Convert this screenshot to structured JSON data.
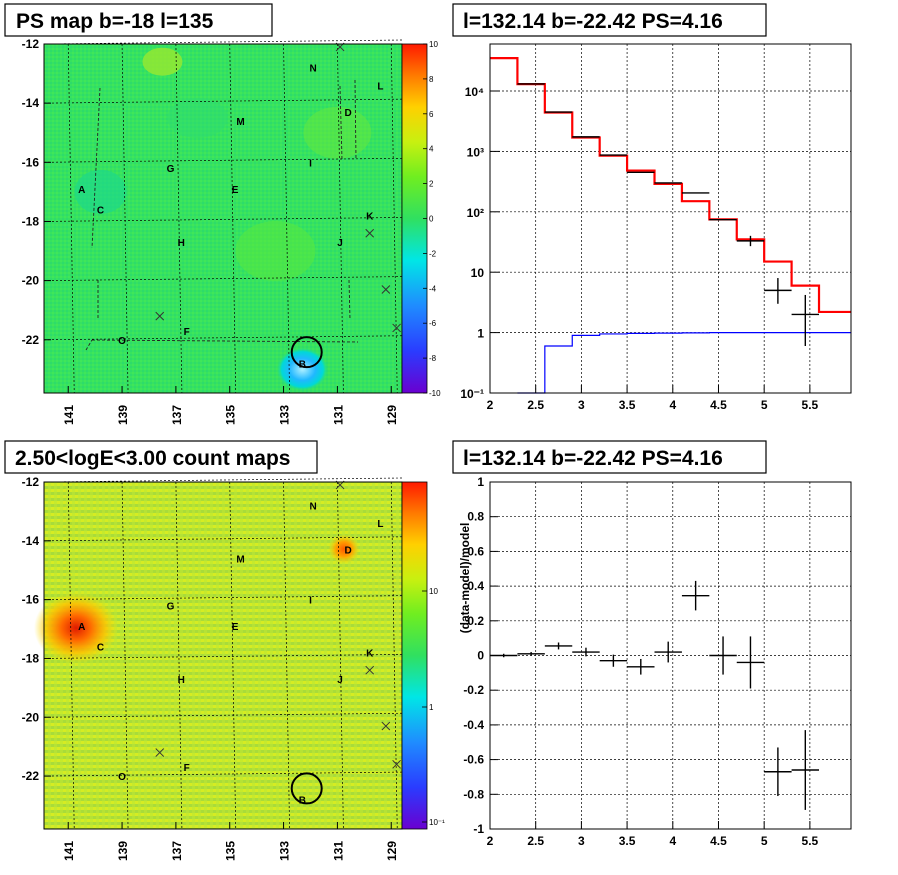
{
  "panels": {
    "ps_map": {
      "title": "PS map b=-18 l=135"
    },
    "count_map": {
      "title": "2.50<logE<3.00 count maps"
    },
    "spectrum": {
      "title": "l=132.14 b=-22.42 PS=4.16"
    },
    "residual": {
      "title": "l=132.14 b=-22.42 PS=4.16"
    }
  },
  "chart_data": [
    {
      "type": "heatmap",
      "title": "PS map b=-18 l=135",
      "xaxis": {
        "range": [
          141.9,
          128.6
        ],
        "ticks": [
          "141",
          "139",
          "137",
          "135",
          "133",
          "131",
          "129"
        ]
      },
      "yaxis": {
        "range": [
          -23.8,
          -12.0
        ],
        "ticks": [
          "-12",
          "-14",
          "-16",
          "-18",
          "-20",
          "-22"
        ]
      },
      "colorbar": {
        "range": [
          -10,
          10
        ],
        "ticks": [
          "10",
          "8",
          "6",
          "4",
          "2",
          "0",
          "-2",
          "-4",
          "-6",
          "-8",
          "-10"
        ]
      },
      "sources": [
        {
          "label": "N",
          "l": 131.9,
          "b": -12.8
        },
        {
          "label": "L",
          "l": 129.4,
          "b": -13.4
        },
        {
          "label": "M",
          "l": 134.6,
          "b": -14.6
        },
        {
          "label": "D",
          "l": 130.6,
          "b": -14.3
        },
        {
          "label": "G",
          "l": 137.2,
          "b": -16.2
        },
        {
          "label": "I",
          "l": 132.0,
          "b": -16.0
        },
        {
          "label": "A",
          "l": 140.5,
          "b": -16.9
        },
        {
          "label": "E",
          "l": 134.8,
          "b": -16.9
        },
        {
          "label": "C",
          "l": 139.8,
          "b": -17.6
        },
        {
          "label": "K",
          "l": 129.8,
          "b": -17.8
        },
        {
          "label": "H",
          "l": 136.8,
          "b": -18.7
        },
        {
          "label": "J",
          "l": 130.9,
          "b": -18.7
        },
        {
          "label": "F",
          "l": 136.6,
          "b": -21.7
        },
        {
          "label": "O",
          "l": 139.0,
          "b": -22.0
        },
        {
          "label": "B",
          "l": 132.3,
          "b": -22.8
        }
      ],
      "crosses": [
        {
          "l": 130.9,
          "b": -12.1
        },
        {
          "l": 129.8,
          "b": -18.4
        },
        {
          "l": 129.2,
          "b": -20.3
        },
        {
          "l": 137.6,
          "b": -21.2
        },
        {
          "l": 128.8,
          "b": -21.6
        }
      ],
      "circle": {
        "l": 132.14,
        "b": -22.42
      }
    },
    {
      "type": "heatmap",
      "title": "2.50<logE<3.00 count maps",
      "xaxis": {
        "range": [
          141.9,
          128.6
        ],
        "ticks": [
          "141",
          "139",
          "137",
          "135",
          "133",
          "131",
          "129"
        ]
      },
      "yaxis": {
        "range": [
          -23.8,
          -12.0
        ],
        "ticks": [
          "-12",
          "-14",
          "-16",
          "-18",
          "-20",
          "-22"
        ]
      },
      "colorbar": {
        "scale": "log",
        "ticks": [
          "10",
          "1",
          "10⁻¹"
        ]
      },
      "hotspots": [
        {
          "label": "A",
          "l": 140.2,
          "b": -17.0
        },
        {
          "label": "D",
          "l": 130.6,
          "b": -14.3
        }
      ],
      "circle": {
        "l": 132.14,
        "b": -22.42
      }
    },
    {
      "type": "line",
      "title": "l=132.14 b=-22.42 PS=4.16",
      "xlim": [
        2.0,
        5.95
      ],
      "ylim": [
        0.1,
        60000
      ],
      "yscale": "log",
      "xticks": [
        "2",
        "2.5",
        "3",
        "3.5",
        "4",
        "4.5",
        "5",
        "5.5"
      ],
      "yticks": [
        "10⁻¹",
        "1",
        "10",
        "10²",
        "10³",
        "10⁴"
      ],
      "grid": true,
      "series": [
        {
          "role": "model-total",
          "color": "#ff0000",
          "edges": [
            2.0,
            2.3,
            2.6,
            2.9,
            3.2,
            3.5,
            3.8,
            4.1,
            4.4,
            4.7,
            5.0,
            5.3,
            5.6,
            5.95
          ],
          "values": [
            35000,
            13000,
            4400,
            1700,
            850,
            480,
            290,
            150,
            75,
            35,
            15,
            6,
            2.2
          ]
        },
        {
          "role": "model-source",
          "color": "#0000ff",
          "edges": [
            2.3,
            2.6,
            2.9,
            3.2,
            3.5,
            3.8,
            4.1,
            4.4,
            4.7,
            5.0,
            5.3,
            5.6,
            5.95
          ],
          "values": [
            0.1,
            0.6,
            0.9,
            0.95,
            0.97,
            0.98,
            0.99,
            1.0,
            1.0,
            1.0,
            1.0,
            1.0
          ]
        },
        {
          "role": "data",
          "color": "#000000",
          "points": [
            {
              "x": 2.45,
              "y": 13100,
              "xerr": 0.15
            },
            {
              "x": 2.75,
              "y": 4480,
              "xerr": 0.15
            },
            {
              "x": 3.05,
              "y": 1740,
              "xerr": 0.15
            },
            {
              "x": 3.35,
              "y": 870,
              "xerr": 0.15
            },
            {
              "x": 3.65,
              "y": 450,
              "xerr": 0.15
            },
            {
              "x": 3.95,
              "y": 300,
              "xerr": 0.15
            },
            {
              "x": 4.25,
              "y": 205,
              "xerr": 0.15
            },
            {
              "x": 4.55,
              "y": 74,
              "xerr": 0.15
            },
            {
              "x": 4.85,
              "y": 33,
              "xerr": 0.15,
              "yerr": [
                27,
                40
              ]
            },
            {
              "x": 5.15,
              "y": 5,
              "xerr": 0.15,
              "yerr": [
                3,
                8
              ]
            },
            {
              "x": 5.45,
              "y": 2,
              "xerr": 0.15,
              "yerr": [
                0.6,
                4.2
              ]
            }
          ]
        }
      ]
    },
    {
      "type": "scatter",
      "title": "l=132.14 b=-22.42 PS=4.16",
      "ylabel": "(data-model)/model",
      "xlim": [
        2.0,
        5.95
      ],
      "ylim": [
        -1,
        1
      ],
      "xticks": [
        "2",
        "2.5",
        "3",
        "3.5",
        "4",
        "4.5",
        "5",
        "5.5"
      ],
      "yticks": [
        "1",
        "0.8",
        "0.6",
        "0.4",
        "0.2",
        "0",
        "-0.2",
        "-0.4",
        "-0.6",
        "-0.8",
        "-1"
      ],
      "grid": true,
      "points": [
        {
          "x": 2.15,
          "y": 0.0,
          "xerr": 0.15,
          "yerr": 0.01
        },
        {
          "x": 2.45,
          "y": 0.01,
          "xerr": 0.15,
          "yerr": 0.01
        },
        {
          "x": 2.75,
          "y": 0.055,
          "xerr": 0.15,
          "yerr": 0.02
        },
        {
          "x": 3.05,
          "y": 0.02,
          "xerr": 0.15,
          "yerr": 0.025
        },
        {
          "x": 3.35,
          "y": -0.03,
          "xerr": 0.15,
          "yerr": 0.035
        },
        {
          "x": 3.65,
          "y": -0.065,
          "xerr": 0.15,
          "yerr": 0.045
        },
        {
          "x": 3.95,
          "y": 0.02,
          "xerr": 0.15,
          "yerr": 0.06
        },
        {
          "x": 4.25,
          "y": 0.345,
          "xerr": 0.15,
          "yerr": 0.085
        },
        {
          "x": 4.55,
          "y": 0.0,
          "xerr": 0.15,
          "yerr": 0.11
        },
        {
          "x": 4.85,
          "y": -0.04,
          "xerr": 0.15,
          "yerr": 0.15
        },
        {
          "x": 5.15,
          "y": -0.67,
          "xerr": 0.15,
          "yerr": 0.14
        },
        {
          "x": 5.45,
          "y": -0.66,
          "xerr": 0.15,
          "yerr": 0.23
        }
      ]
    }
  ]
}
